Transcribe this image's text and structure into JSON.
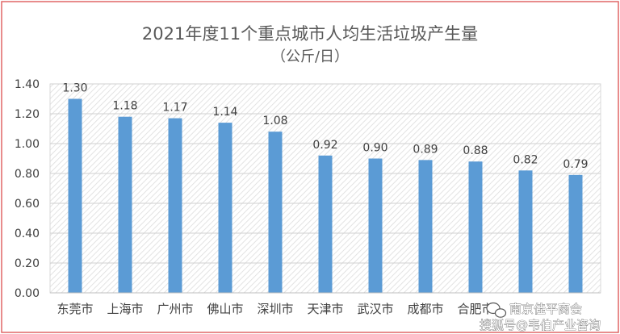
{
  "chart_data": {
    "type": "bar",
    "title": "2021年度11个重点城市人均生活垃圾产生量",
    "subtitle": "（公斤/日）",
    "categories": [
      "东莞市",
      "上海市",
      "广州市",
      "佛山市",
      "深圳市",
      "天津市",
      "武汉市",
      "成都市",
      "合肥市",
      "",
      ""
    ],
    "values": [
      1.3,
      1.18,
      1.17,
      1.14,
      1.08,
      0.92,
      0.9,
      0.89,
      0.88,
      0.82,
      0.79
    ],
    "value_labels": [
      "1.30",
      "1.18",
      "1.17",
      "1.14",
      "1.08",
      "0.92",
      "0.90",
      "0.89",
      "0.88",
      "0.82",
      "0.79"
    ],
    "yticks": [
      "0.00",
      "0.20",
      "0.40",
      "0.60",
      "0.80",
      "1.00",
      "1.20",
      "1.40"
    ],
    "ylim": [
      0,
      1.4
    ],
    "xlabel": "",
    "ylabel": "",
    "grid": true,
    "legend": "none",
    "bar_color": "#5b9bd5",
    "border_color": "#e06666"
  },
  "watermark": {
    "line1": "南京佳平商会",
    "line2": "搜狐号@韦伯产业咨询"
  }
}
